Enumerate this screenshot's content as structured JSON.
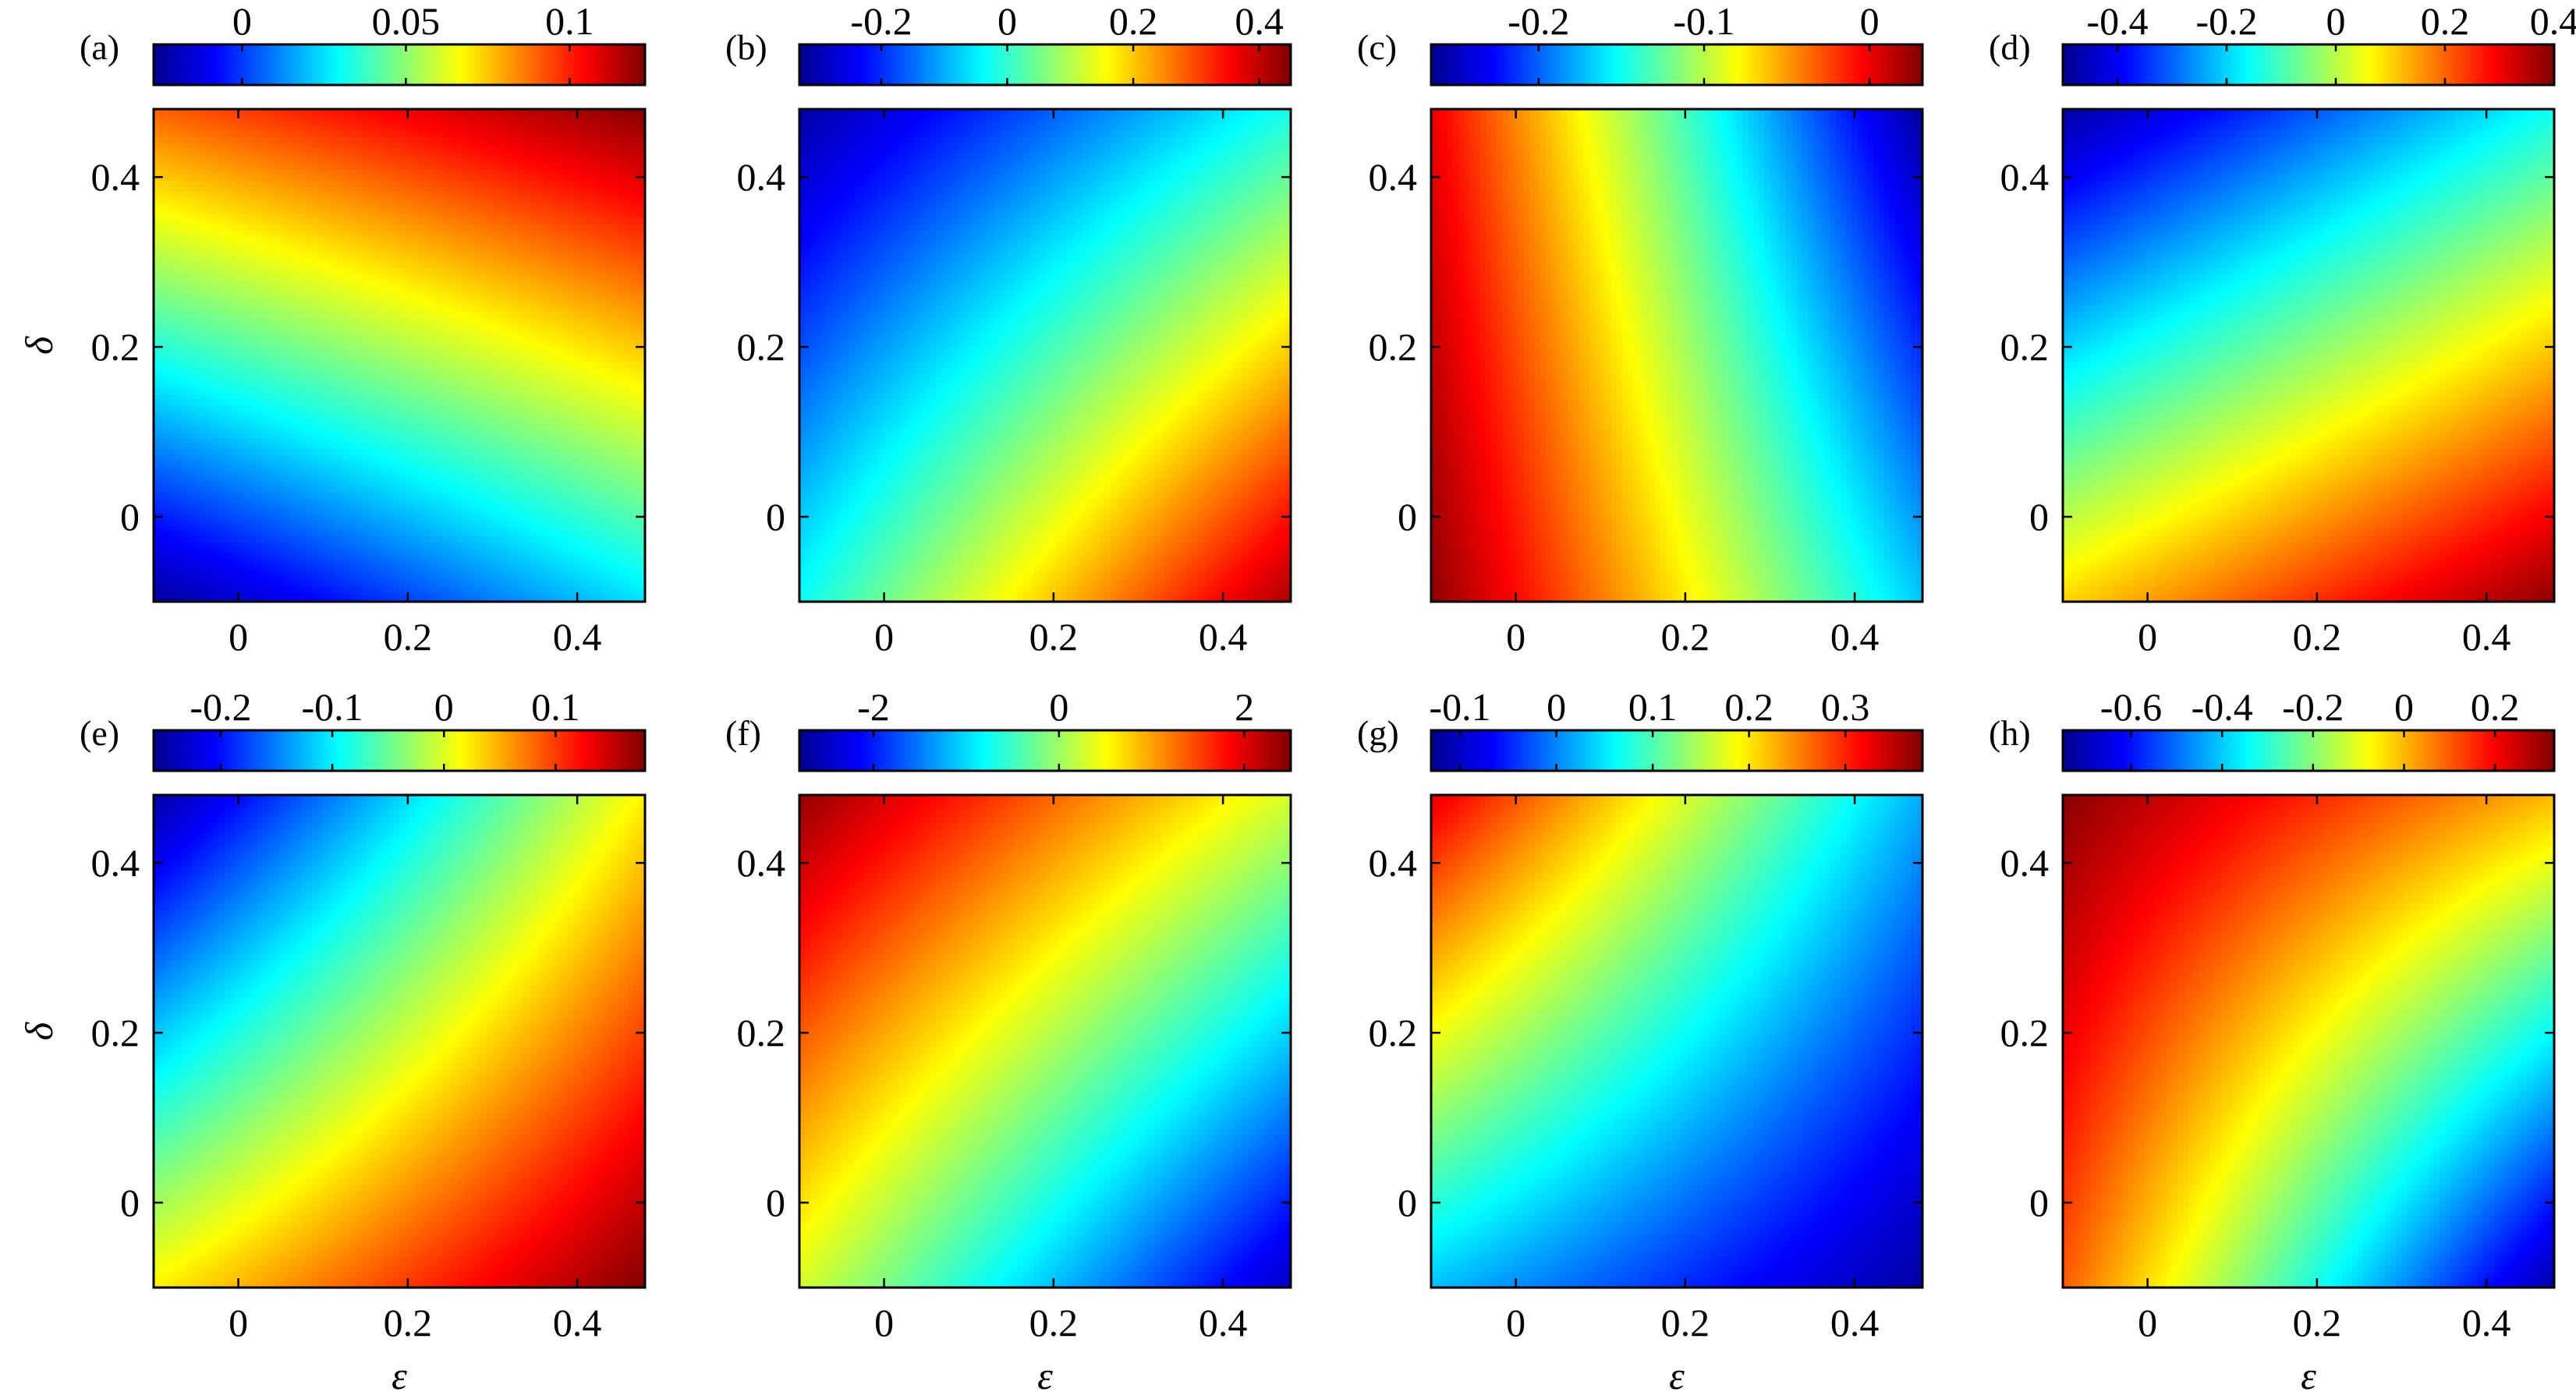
{
  "colormap": [
    "#00008f",
    "#0000ff",
    "#0080ff",
    "#00ffff",
    "#80ff80",
    "#ffff00",
    "#ff8000",
    "#ff0000",
    "#800000"
  ],
  "chart_data": [
    {
      "panel": "(a)",
      "type": "heatmap",
      "xlabel": "",
      "ylabel": "δ",
      "xlim": [
        -0.1,
        0.48
      ],
      "ylim": [
        -0.1,
        0.48
      ],
      "xticks": [
        "0",
        "0.2",
        "0.4"
      ],
      "xtick_values": [
        0,
        0.2,
        0.4
      ],
      "yticks": [
        "0",
        "0.2",
        "0.4"
      ],
      "ytick_values": [
        0,
        0.2,
        0.4
      ],
      "colorbar": {
        "min": -0.027,
        "max": 0.123,
        "ticks": [
          "0",
          "0.05",
          "0.1"
        ],
        "tick_values": [
          0,
          0.05,
          0.1
        ]
      },
      "corner_values": {
        "eps_min_delta_min": -0.025,
        "eps_max_delta_min": 0.025,
        "eps_min_delta_max": 0.09,
        "eps_max_delta_max": 0.122
      }
    },
    {
      "panel": "(b)",
      "type": "heatmap",
      "xlabel": "",
      "ylabel": "",
      "xlim": [
        -0.1,
        0.48
      ],
      "ylim": [
        -0.1,
        0.48
      ],
      "xticks": [
        "0",
        "0.2",
        "0.4"
      ],
      "xtick_values": [
        0,
        0.2,
        0.4
      ],
      "yticks": [
        "0",
        "0.2",
        "0.4"
      ],
      "ytick_values": [
        0,
        0.2,
        0.4
      ],
      "colorbar": {
        "min": -0.33,
        "max": 0.45,
        "ticks": [
          "-0.2",
          "0",
          "0.2",
          "0.4"
        ],
        "tick_values": [
          -0.2,
          0,
          0.2,
          0.4
        ]
      },
      "corner_values": {
        "eps_min_delta_min": -0.03,
        "eps_max_delta_min": 0.42,
        "eps_min_delta_max": -0.31,
        "eps_max_delta_max": -0.02
      }
    },
    {
      "panel": "(c)",
      "type": "heatmap",
      "xlabel": "",
      "ylabel": "",
      "xlim": [
        -0.1,
        0.48
      ],
      "ylim": [
        -0.1,
        0.48
      ],
      "xticks": [
        "0",
        "0.2",
        "0.4"
      ],
      "xtick_values": [
        0,
        0.2,
        0.4
      ],
      "yticks": [
        "0",
        "0.2",
        "0.4"
      ],
      "ytick_values": [
        0,
        0.2,
        0.4
      ],
      "colorbar": {
        "min": -0.265,
        "max": 0.032,
        "ticks": [
          "-0.2",
          "-0.1",
          "0"
        ],
        "tick_values": [
          -0.2,
          -0.1,
          0
        ]
      },
      "corner_values": {
        "eps_min_delta_min": 0.028,
        "eps_max_delta_min": -0.17,
        "eps_min_delta_max": 0.0,
        "eps_max_delta_max": -0.26
      }
    },
    {
      "panel": "(d)",
      "type": "heatmap",
      "xlabel": "",
      "ylabel": "",
      "xlim": [
        -0.1,
        0.48
      ],
      "ylim": [
        -0.1,
        0.48
      ],
      "xticks": [
        "0",
        "0.2",
        "0.4"
      ],
      "xtick_values": [
        0,
        0.2,
        0.4
      ],
      "yticks": [
        "0",
        "0.2",
        "0.4"
      ],
      "ytick_values": [
        0,
        0.2,
        0.4
      ],
      "colorbar": {
        "min": -0.5,
        "max": 0.4,
        "ticks": [
          "-0.4",
          "-0.2",
          "0",
          "0.2",
          "0.4"
        ],
        "tick_values": [
          -0.4,
          -0.2,
          0,
          0.2,
          0.4
        ]
      },
      "corner_values": {
        "eps_min_delta_min": 0.1,
        "eps_max_delta_min": 0.39,
        "eps_min_delta_max": -0.48,
        "eps_max_delta_max": -0.15
      }
    },
    {
      "panel": "(e)",
      "type": "heatmap",
      "xlabel": "ε",
      "ylabel": "δ",
      "xlim": [
        -0.1,
        0.48
      ],
      "ylim": [
        -0.1,
        0.48
      ],
      "xticks": [
        "0",
        "0.2",
        "0.4"
      ],
      "xtick_values": [
        0,
        0.2,
        0.4
      ],
      "yticks": [
        "0",
        "0.2",
        "0.4"
      ],
      "ytick_values": [
        0,
        0.2,
        0.4
      ],
      "colorbar": {
        "min": -0.26,
        "max": 0.18,
        "ticks": [
          "-0.2",
          "-0.1",
          "0",
          "0.1"
        ],
        "tick_values": [
          -0.2,
          -0.1,
          0,
          0.1
        ]
      },
      "corner_values": {
        "eps_min_delta_min": 0.02,
        "eps_max_delta_min": 0.18,
        "eps_min_delta_max": -0.25,
        "eps_max_delta_max": 0.02
      }
    },
    {
      "panel": "(f)",
      "type": "heatmap",
      "xlabel": "ε",
      "ylabel": "",
      "xlim": [
        -0.1,
        0.48
      ],
      "ylim": [
        -0.1,
        0.48
      ],
      "xticks": [
        "0",
        "0.2",
        "0.4"
      ],
      "xtick_values": [
        0,
        0.2,
        0.4
      ],
      "yticks": [
        "0",
        "0.2",
        "0.4"
      ],
      "ytick_values": [
        0,
        0.2,
        0.4
      ],
      "colorbar": {
        "min": -2.8,
        "max": 2.5,
        "ticks": [
          "-2",
          "0",
          "2"
        ],
        "tick_values": [
          -2,
          0,
          2
        ]
      },
      "corner_values": {
        "eps_min_delta_min": 0.3,
        "eps_max_delta_min": -2.5,
        "eps_min_delta_max": 2.4,
        "eps_max_delta_max": 0.3
      }
    },
    {
      "panel": "(g)",
      "type": "heatmap",
      "xlabel": "ε",
      "ylabel": "",
      "xlim": [
        -0.1,
        0.48
      ],
      "ylim": [
        -0.1,
        0.48
      ],
      "xticks": [
        "0",
        "0.2",
        "0.4"
      ],
      "xtick_values": [
        0,
        0.2,
        0.4
      ],
      "yticks": [
        "0",
        "0.2",
        "0.4"
      ],
      "ytick_values": [
        0,
        0.2,
        0.4
      ],
      "colorbar": {
        "min": -0.13,
        "max": 0.38,
        "ticks": [
          "-0.1",
          "0",
          "0.1",
          "0.2",
          "0.3"
        ],
        "tick_values": [
          -0.1,
          0,
          0.1,
          0.2,
          0.3
        ]
      },
      "corner_values": {
        "eps_min_delta_min": 0.03,
        "eps_max_delta_min": -0.12,
        "eps_min_delta_max": 0.33,
        "eps_max_delta_max": 0.02
      }
    },
    {
      "panel": "(h)",
      "type": "heatmap",
      "xlabel": "ε",
      "ylabel": "",
      "xlim": [
        -0.1,
        0.48
      ],
      "ylim": [
        -0.1,
        0.48
      ],
      "xticks": [
        "0",
        "0.2",
        "0.4"
      ],
      "xtick_values": [
        0,
        0.2,
        0.4
      ],
      "yticks": [
        "0",
        "0.2",
        "0.4"
      ],
      "ytick_values": [
        0,
        0.2,
        0.4
      ],
      "colorbar": {
        "min": -0.75,
        "max": 0.33,
        "ticks": [
          "-0.6",
          "-0.4",
          "-0.2",
          "0",
          "0.2"
        ],
        "tick_values": [
          -0.6,
          -0.4,
          -0.2,
          0,
          0.2
        ]
      },
      "corner_values": {
        "eps_min_delta_min": 0.1,
        "eps_max_delta_min": -0.72,
        "eps_min_delta_max": 0.32,
        "eps_max_delta_max": 0.0
      }
    }
  ]
}
